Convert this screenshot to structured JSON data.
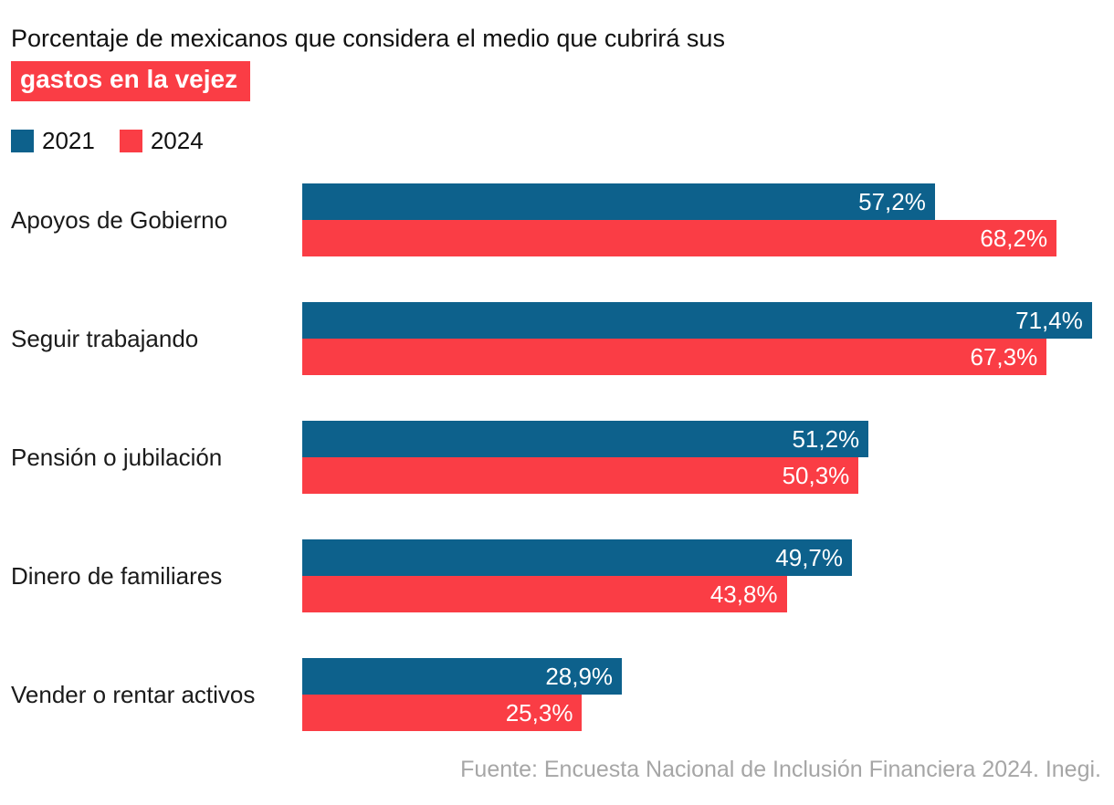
{
  "header": {
    "title_line1": "Porcentaje de mexicanos que considera el medio que cubrirá sus",
    "title_highlight": "gastos en la vejez"
  },
  "legend": {
    "items": [
      {
        "label": "2021",
        "color": "#0d618c"
      },
      {
        "label": "2024",
        "color": "#fa3d45"
      }
    ]
  },
  "footer": {
    "source": "Fuente: Encuesta Nacional de Inclusión Financiera 2024. Inegi."
  },
  "colors": {
    "blue_2021": "#0d618c",
    "red_2024": "#fa3d45",
    "highlight_bg": "#fa3d45",
    "source_gray": "#a6a6a6"
  },
  "chart_data": {
    "type": "bar",
    "orientation": "horizontal",
    "title": "Porcentaje de mexicanos que considera el medio que cubrirá sus gastos en la vejez",
    "categories": [
      "Apoyos de Gobierno",
      "Seguir trabajando",
      "Pensión o jubilación",
      "Dinero de familiares",
      "Vender o rentar activos"
    ],
    "series": [
      {
        "name": "2021",
        "color": "#0d618c",
        "values": [
          57.2,
          71.4,
          51.2,
          49.7,
          28.9
        ],
        "labels": [
          "57,2%",
          "71,4%",
          "51,2%",
          "49,7%",
          "28,9%"
        ]
      },
      {
        "name": "2024",
        "color": "#fa3d45",
        "values": [
          68.2,
          67.3,
          50.3,
          43.8,
          25.3
        ],
        "labels": [
          "68,2%",
          "67,3%",
          "50,3%",
          "43,8%",
          "25,3%"
        ]
      }
    ],
    "xlabel": "",
    "ylabel": "",
    "xmax": 72.4,
    "grid": false,
    "legend_position": "top-left",
    "value_labels": "inside-end",
    "source": "Fuente: Encuesta Nacional de Inclusión Financiera 2024. Inegi."
  }
}
